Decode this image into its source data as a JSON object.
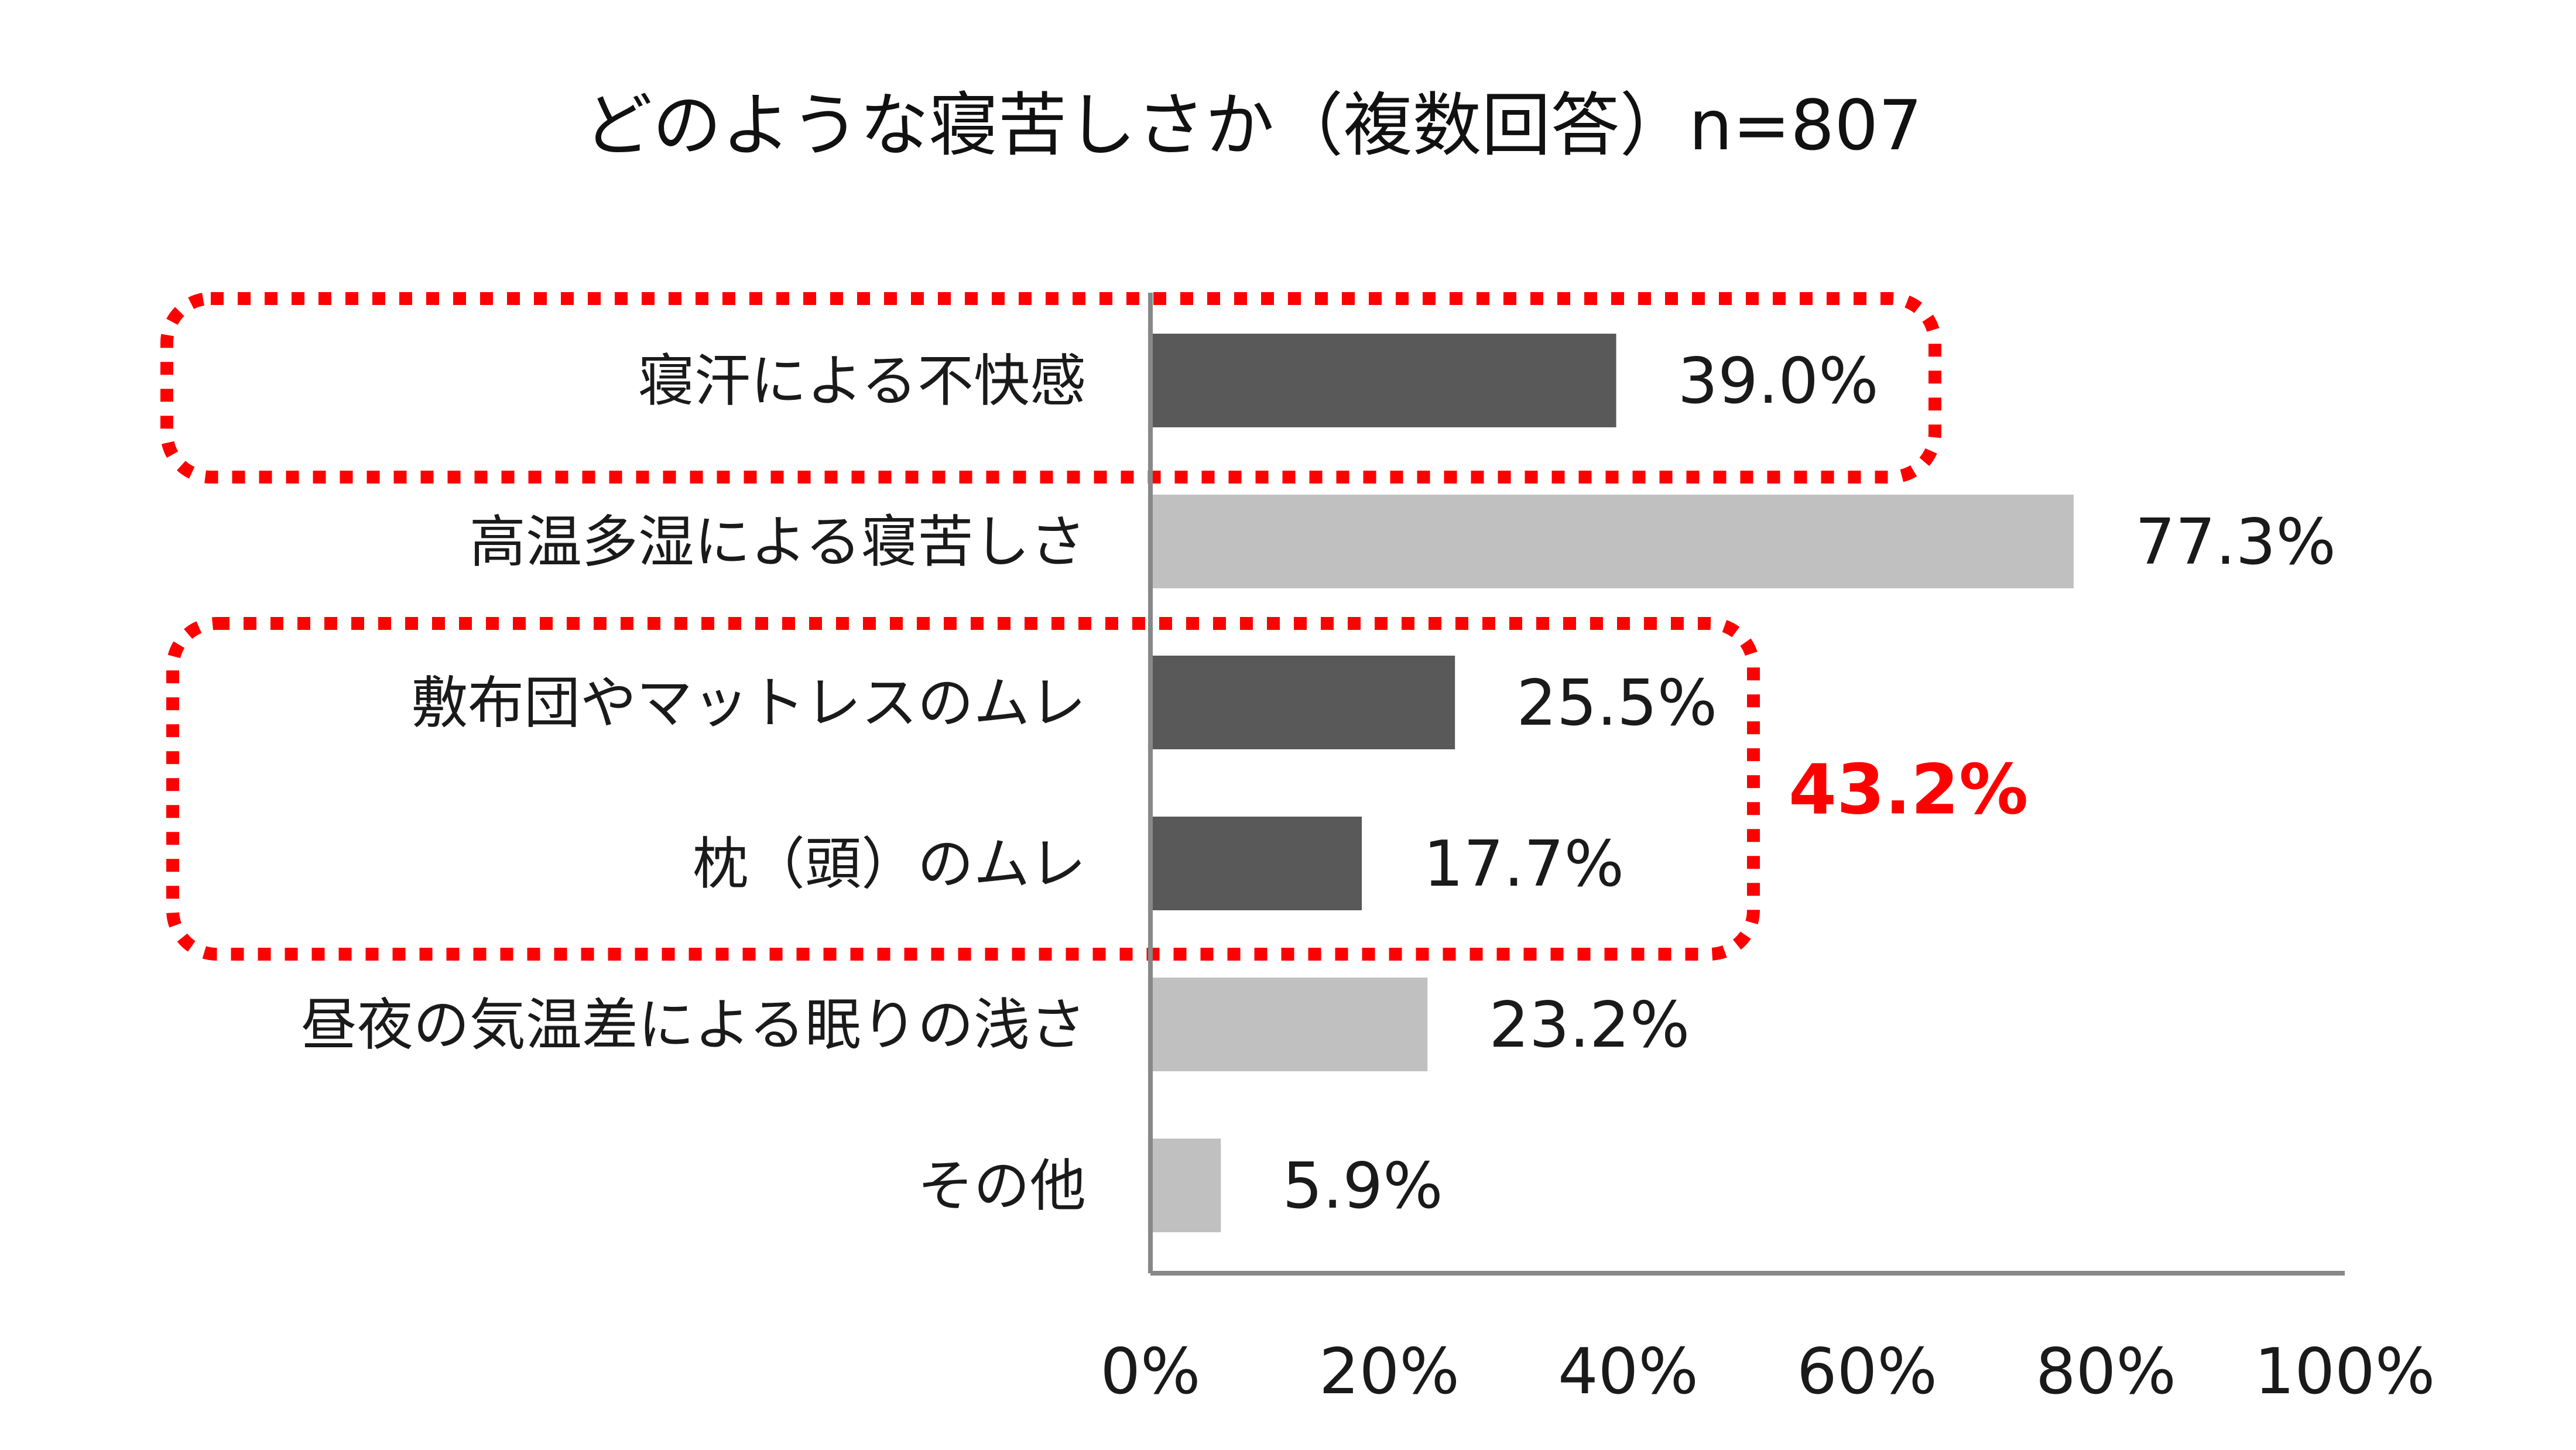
{
  "chart_data": {
    "type": "bar",
    "orientation": "horizontal",
    "title": "どのような寝苦しさか（複数回答）n=807",
    "xlabel": "",
    "ylabel": "",
    "xlim": [
      0,
      100
    ],
    "x_ticks": [
      0,
      20,
      40,
      60,
      80,
      100
    ],
    "x_tick_labels": [
      "0%",
      "20%",
      "40%",
      "60%",
      "80%",
      "100%"
    ],
    "grid": false,
    "categories": [
      "寝汗による不快感",
      "高温多湿による寝苦しさ",
      "敷布団やマットレスのムレ",
      "枕（頭）のムレ",
      "昼夜の気温差による眠りの浅さ",
      "その他"
    ],
    "values": [
      39.0,
      77.3,
      25.5,
      17.7,
      23.2,
      5.9
    ],
    "value_labels": [
      "39.0%",
      "77.3%",
      "25.5%",
      "17.7%",
      "23.2%",
      "5.9%"
    ],
    "highlighted": [
      true,
      false,
      true,
      true,
      false,
      false
    ],
    "colors": {
      "highlight_bar": "#595959",
      "normal_bar": "#c0c0c0",
      "accent": "#ff0000",
      "axis": "#888888"
    },
    "annotations": [
      {
        "type": "dotted-box",
        "categories": [
          0
        ]
      },
      {
        "type": "dotted-box",
        "categories": [
          2,
          3
        ],
        "label": "43.2%"
      }
    ]
  }
}
